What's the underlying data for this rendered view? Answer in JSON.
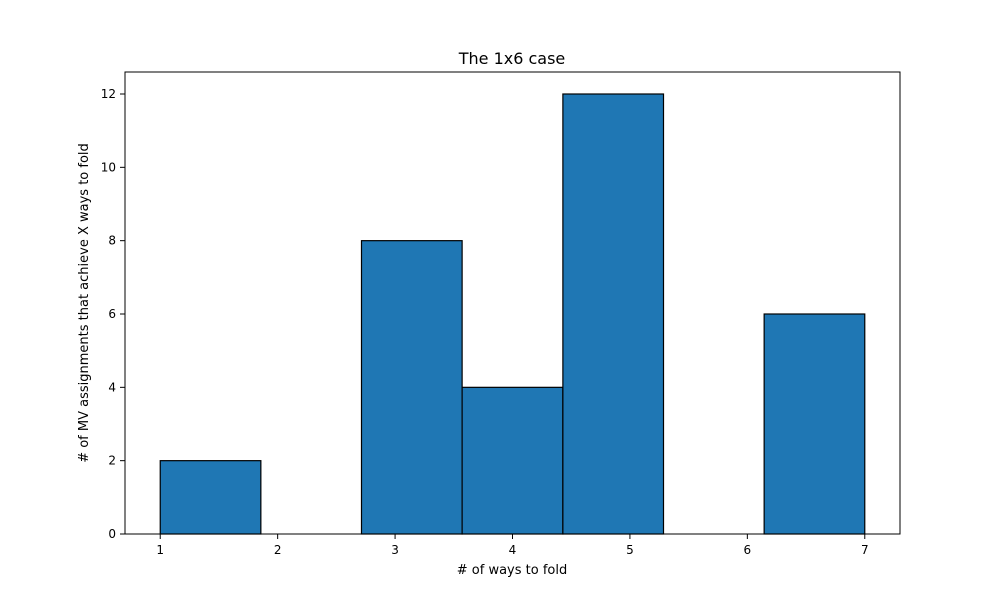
{
  "chart_data": {
    "type": "bar",
    "title": "The 1x6 case",
    "xlabel": "# of ways to fold",
    "ylabel": "# of MV assignments that achieve X ways to fold",
    "bins": [
      {
        "x0": 1.0,
        "x1": 1.857,
        "value": 2
      },
      {
        "x0": 1.857,
        "x1": 2.714,
        "value": 0
      },
      {
        "x0": 2.714,
        "x1": 3.571,
        "value": 8
      },
      {
        "x0": 3.571,
        "x1": 4.429,
        "value": 4
      },
      {
        "x0": 4.429,
        "x1": 5.286,
        "value": 12
      },
      {
        "x0": 5.286,
        "x1": 6.143,
        "value": 0
      },
      {
        "x0": 6.143,
        "x1": 7.0,
        "value": 6
      }
    ],
    "xlim": [
      0.7,
      7.3
    ],
    "ylim": [
      0,
      12.6
    ],
    "xticks": [
      "1",
      "2",
      "3",
      "4",
      "5",
      "6",
      "7"
    ],
    "yticks": [
      "0",
      "2",
      "4",
      "6",
      "8",
      "10",
      "12"
    ],
    "bar_color": "#1f77b4",
    "edge_color": "#000000",
    "grid": false,
    "legend": "none"
  }
}
